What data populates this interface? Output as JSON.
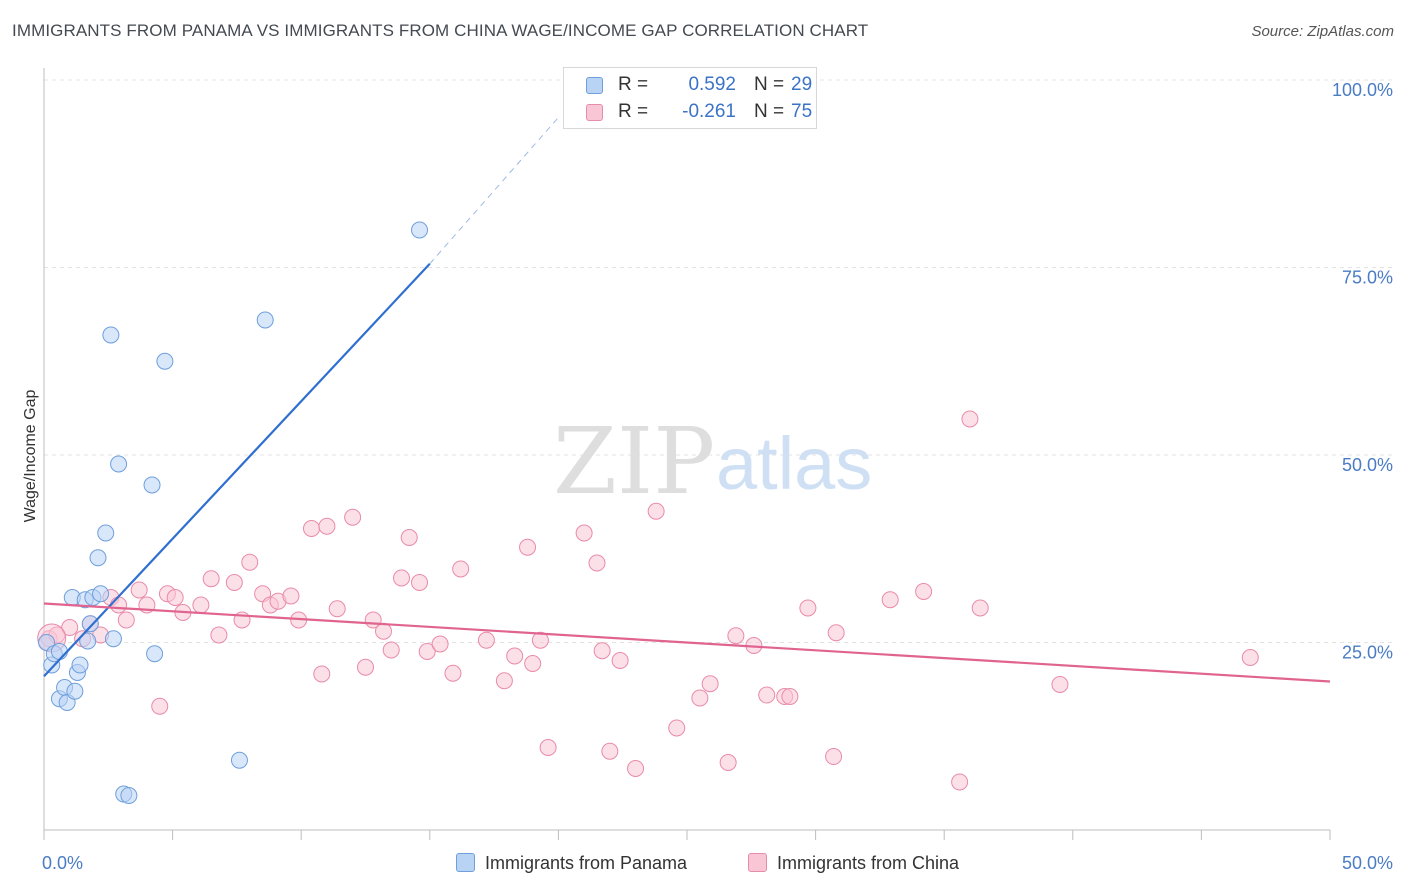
{
  "title": "IMMIGRANTS FROM PANAMA VS IMMIGRANTS FROM CHINA WAGE/INCOME GAP CORRELATION CHART",
  "source": "Source: ZipAtlas.com",
  "watermark": {
    "zip": "ZIP",
    "atlas": "atlas"
  },
  "colors": {
    "panama_fill": "#b9d3f5",
    "panama_stroke": "#6f9fdc",
    "panama_line": "#2f6fd0",
    "china_fill": "#f9c6d6",
    "china_stroke": "#e98bab",
    "china_line": "#e0648f",
    "tick": "#4a7cc4",
    "grid": "#e3e3e3"
  },
  "legend_top": {
    "rows": [
      {
        "r_label": "R =",
        "r_value": "0.592",
        "n_label": "N =",
        "n_value": "29"
      },
      {
        "r_label": "R =",
        "r_value": "-0.261",
        "n_label": "N =",
        "n_value": "75"
      }
    ]
  },
  "legend_bottom": {
    "panama": "Immigrants from Panama",
    "china": "Immigrants from China"
  },
  "chart_data": {
    "type": "scatter",
    "title": "IMMIGRANTS FROM PANAMA VS IMMIGRANTS FROM CHINA WAGE/INCOME GAP CORRELATION CHART",
    "xlabel": "",
    "ylabel": "Wage/Income Gap",
    "xlim": [
      0,
      50
    ],
    "ylim": [
      0,
      100
    ],
    "x_tick_labels": [
      "0.0%",
      "50.0%"
    ],
    "y_ticks": [
      25,
      50,
      75,
      100
    ],
    "y_tick_labels": [
      "25.0%",
      "50.0%",
      "75.0%",
      "100.0%"
    ],
    "grid": true,
    "series": [
      {
        "name": "Immigrants from Panama",
        "r": 0.592,
        "n": 29,
        "trend": {
          "x": [
            0,
            15
          ],
          "y": [
            20.5,
            75.5
          ],
          "dashed_to": [
            20,
            95
          ]
        },
        "points": [
          [
            0.1,
            25.0
          ],
          [
            0.3,
            22.0
          ],
          [
            0.4,
            23.5
          ],
          [
            0.6,
            23.8
          ],
          [
            0.6,
            17.5
          ],
          [
            0.8,
            19.0
          ],
          [
            0.9,
            17.0
          ],
          [
            1.1,
            31.0
          ],
          [
            1.2,
            18.5
          ],
          [
            1.3,
            21.0
          ],
          [
            1.4,
            22.0
          ],
          [
            1.6,
            30.7
          ],
          [
            1.7,
            25.2
          ],
          [
            1.8,
            27.5
          ],
          [
            1.9,
            31.0
          ],
          [
            2.1,
            36.3
          ],
          [
            2.2,
            31.5
          ],
          [
            2.4,
            39.6
          ],
          [
            2.6,
            66.0
          ],
          [
            2.7,
            25.5
          ],
          [
            2.9,
            48.8
          ],
          [
            3.1,
            4.8
          ],
          [
            3.3,
            4.6
          ],
          [
            4.2,
            46.0
          ],
          [
            4.3,
            23.5
          ],
          [
            4.7,
            62.5
          ],
          [
            7.6,
            9.3
          ],
          [
            8.6,
            68.0
          ],
          [
            14.6,
            80.0
          ]
        ]
      },
      {
        "name": "Immigrants from China",
        "r": -0.261,
        "n": 75,
        "trend": {
          "x": [
            0,
            50
          ],
          "y": [
            30.2,
            19.8
          ]
        },
        "points": [
          [
            0.2,
            25.5
          ],
          [
            0.5,
            26.0
          ],
          [
            1.0,
            27.0
          ],
          [
            1.5,
            25.5
          ],
          [
            1.8,
            27.5
          ],
          [
            2.2,
            26.0
          ],
          [
            2.6,
            31.0
          ],
          [
            2.9,
            30.0
          ],
          [
            3.2,
            28.0
          ],
          [
            3.7,
            32.0
          ],
          [
            4.0,
            30.0
          ],
          [
            4.5,
            16.5
          ],
          [
            4.8,
            31.5
          ],
          [
            5.1,
            31.0
          ],
          [
            5.4,
            29.0
          ],
          [
            6.1,
            30.0
          ],
          [
            6.5,
            33.5
          ],
          [
            6.8,
            26.0
          ],
          [
            7.4,
            33.0
          ],
          [
            7.7,
            28.0
          ],
          [
            8.0,
            35.7
          ],
          [
            8.5,
            31.5
          ],
          [
            8.8,
            30.0
          ],
          [
            9.1,
            30.5
          ],
          [
            9.6,
            31.2
          ],
          [
            9.9,
            28.0
          ],
          [
            10.4,
            40.2
          ],
          [
            10.8,
            20.8
          ],
          [
            11.0,
            40.5
          ],
          [
            11.4,
            29.5
          ],
          [
            12.0,
            41.7
          ],
          [
            12.5,
            21.7
          ],
          [
            12.8,
            28.0
          ],
          [
            13.2,
            26.5
          ],
          [
            13.5,
            24.0
          ],
          [
            13.9,
            33.6
          ],
          [
            14.2,
            39.0
          ],
          [
            14.6,
            33.0
          ],
          [
            14.9,
            23.8
          ],
          [
            15.4,
            24.8
          ],
          [
            15.9,
            20.9
          ],
          [
            16.2,
            34.8
          ],
          [
            17.2,
            25.3
          ],
          [
            17.9,
            19.9
          ],
          [
            18.3,
            23.2
          ],
          [
            18.8,
            37.7
          ],
          [
            19.0,
            22.2
          ],
          [
            19.3,
            25.3
          ],
          [
            19.6,
            11.0
          ],
          [
            21.0,
            39.6
          ],
          [
            21.5,
            35.6
          ],
          [
            21.7,
            23.9
          ],
          [
            22.0,
            10.5
          ],
          [
            22.4,
            22.6
          ],
          [
            23.0,
            8.2
          ],
          [
            23.8,
            42.5
          ],
          [
            24.6,
            13.6
          ],
          [
            25.5,
            17.6
          ],
          [
            25.9,
            19.5
          ],
          [
            26.6,
            9.0
          ],
          [
            26.9,
            25.9
          ],
          [
            27.6,
            24.6
          ],
          [
            28.1,
            18.0
          ],
          [
            28.8,
            17.8
          ],
          [
            29.0,
            17.8
          ],
          [
            29.7,
            29.6
          ],
          [
            30.7,
            9.8
          ],
          [
            30.8,
            26.3
          ],
          [
            32.9,
            30.7
          ],
          [
            34.2,
            31.8
          ],
          [
            35.6,
            6.4
          ],
          [
            36.0,
            54.8
          ],
          [
            36.4,
            29.6
          ],
          [
            39.5,
            19.4
          ],
          [
            46.9,
            23.0
          ]
        ]
      }
    ]
  }
}
